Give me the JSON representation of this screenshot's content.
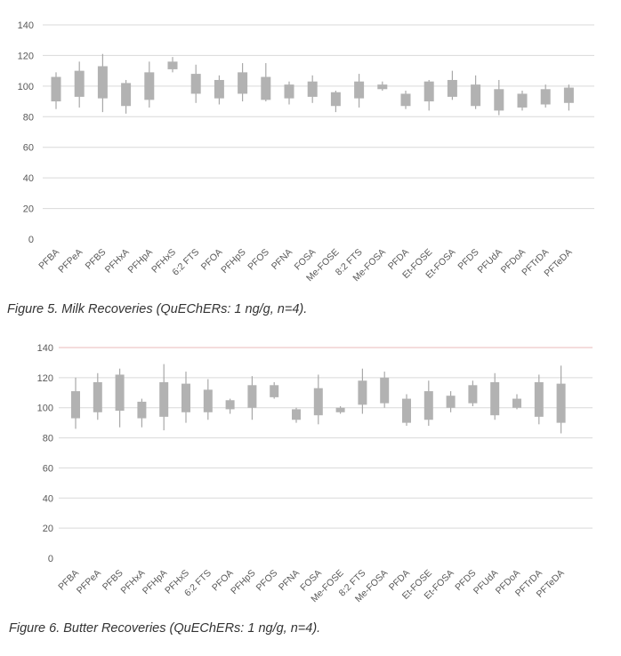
{
  "chart_data": [
    {
      "type": "box",
      "title": "Figure 5. Milk Recoveries (QuEChERs: 1 ng/g, n=4).",
      "xlabel": "",
      "ylabel": "",
      "ylim": [
        0,
        140
      ],
      "yticks": [
        0,
        20,
        40,
        60,
        80,
        100,
        120,
        140
      ],
      "grid": true,
      "categories": [
        "PFBA",
        "PFPeA",
        "PFBS",
        "PFHxA",
        "PFHpA",
        "PFHxS",
        "6:2 FTS",
        "PFOA",
        "PFHpS",
        "PFOS",
        "PFNA",
        "FOSA",
        "Me-FOSE",
        "8:2 FTS",
        "Me-FOSA",
        "PFDA",
        "Et-FOSE",
        "Et-FOSA",
        "PFDS",
        "PFUdA",
        "PFDoA",
        "PFTrDA",
        "PFTeDA"
      ],
      "boxes": [
        {
          "min": 85,
          "q1": 90,
          "q3": 106,
          "max": 109
        },
        {
          "min": 86,
          "q1": 93,
          "q3": 110,
          "max": 116
        },
        {
          "min": 83,
          "q1": 92,
          "q3": 113,
          "max": 121
        },
        {
          "min": 82,
          "q1": 87,
          "q3": 102,
          "max": 104
        },
        {
          "min": 86,
          "q1": 91,
          "q3": 109,
          "max": 116
        },
        {
          "min": 109,
          "q1": 111,
          "q3": 116,
          "max": 119
        },
        {
          "min": 89,
          "q1": 95,
          "q3": 108,
          "max": 114
        },
        {
          "min": 88,
          "q1": 92,
          "q3": 104,
          "max": 107
        },
        {
          "min": 90,
          "q1": 95,
          "q3": 109,
          "max": 115
        },
        {
          "min": 90,
          "q1": 91,
          "q3": 106,
          "max": 115
        },
        {
          "min": 88,
          "q1": 92,
          "q3": 101,
          "max": 103
        },
        {
          "min": 89,
          "q1": 93,
          "q3": 103,
          "max": 107
        },
        {
          "min": 83,
          "q1": 87,
          "q3": 96,
          "max": 97
        },
        {
          "min": 86,
          "q1": 92,
          "q3": 103,
          "max": 108
        },
        {
          "min": 97,
          "q1": 98,
          "q3": 101,
          "max": 103
        },
        {
          "min": 85,
          "q1": 87,
          "q3": 95,
          "max": 97
        },
        {
          "min": 84,
          "q1": 90,
          "q3": 103,
          "max": 104
        },
        {
          "min": 91,
          "q1": 93,
          "q3": 104,
          "max": 110
        },
        {
          "min": 85,
          "q1": 87,
          "q3": 101,
          "max": 107
        },
        {
          "min": 81,
          "q1": 84,
          "q3": 98,
          "max": 104
        },
        {
          "min": 84,
          "q1": 86,
          "q3": 95,
          "max": 97
        },
        {
          "min": 86,
          "q1": 88,
          "q3": 98,
          "max": 101
        },
        {
          "min": 84,
          "q1": 89,
          "q3": 99,
          "max": 101
        }
      ]
    },
    {
      "type": "box",
      "title": "Figure 6. Butter Recoveries (QuEChERs: 1 ng/g, n=4).",
      "xlabel": "",
      "ylabel": "",
      "ylim": [
        0,
        140
      ],
      "yticks": [
        0,
        20,
        40,
        60,
        80,
        100,
        120,
        140
      ],
      "grid": true,
      "categories": [
        "PFBA",
        "PFPeA",
        "PFBS",
        "PFHxA",
        "PFHpA",
        "PFHxS",
        "6:2 FTS",
        "PFOA",
        "PFHpS",
        "PFOS",
        "PFNA",
        "FOSA",
        "Me-FOSE",
        "8:2 FTS",
        "Me-FOSA",
        "PFDA",
        "Et-FOSE",
        "Et-FOSA",
        "PFDS",
        "PFUdA",
        "PFDoA",
        "PFTrDA",
        "PFTeDA"
      ],
      "boxes": [
        {
          "min": 86,
          "q1": 93,
          "q3": 111,
          "max": 120
        },
        {
          "min": 92,
          "q1": 97,
          "q3": 117,
          "max": 123
        },
        {
          "min": 87,
          "q1": 98,
          "q3": 122,
          "max": 126
        },
        {
          "min": 87,
          "q1": 93,
          "q3": 104,
          "max": 106
        },
        {
          "min": 85,
          "q1": 94,
          "q3": 117,
          "max": 129
        },
        {
          "min": 90,
          "q1": 97,
          "q3": 116,
          "max": 124
        },
        {
          "min": 92,
          "q1": 97,
          "q3": 112,
          "max": 119
        },
        {
          "min": 96,
          "q1": 99,
          "q3": 105,
          "max": 106
        },
        {
          "min": 92,
          "q1": 100,
          "q3": 115,
          "max": 121
        },
        {
          "min": 106,
          "q1": 107,
          "q3": 115,
          "max": 117
        },
        {
          "min": 90,
          "q1": 92,
          "q3": 99,
          "max": 100
        },
        {
          "min": 89,
          "q1": 95,
          "q3": 113,
          "max": 122
        },
        {
          "min": 96,
          "q1": 97,
          "q3": 100,
          "max": 101
        },
        {
          "min": 96,
          "q1": 102,
          "q3": 118,
          "max": 126
        },
        {
          "min": 100,
          "q1": 103,
          "q3": 120,
          "max": 124
        },
        {
          "min": 88,
          "q1": 90,
          "q3": 106,
          "max": 109
        },
        {
          "min": 88,
          "q1": 92,
          "q3": 111,
          "max": 118
        },
        {
          "min": 97,
          "q1": 100,
          "q3": 108,
          "max": 111
        },
        {
          "min": 101,
          "q1": 103,
          "q3": 115,
          "max": 118
        },
        {
          "min": 92,
          "q1": 95,
          "q3": 117,
          "max": 123
        },
        {
          "min": 99,
          "q1": 100,
          "q3": 106,
          "max": 109
        },
        {
          "min": 89,
          "q1": 94,
          "q3": 117,
          "max": 122
        },
        {
          "min": 83,
          "q1": 90,
          "q3": 116,
          "max": 128
        }
      ]
    }
  ],
  "colors": {
    "box": "#b2b2b2",
    "whisker": "#a8a8a8",
    "grid": "#d9d9d9",
    "grid_top_chart2": "#e8b8b8",
    "tick_text": "#595959",
    "caption_text": "#333333"
  }
}
